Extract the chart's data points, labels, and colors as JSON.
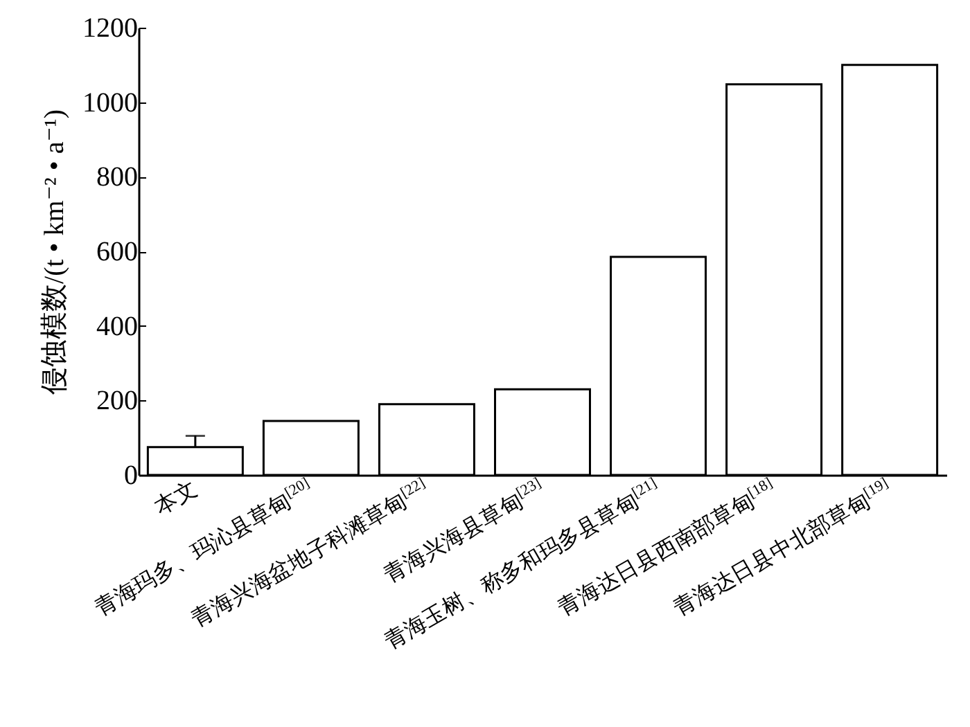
{
  "chart_data": {
    "type": "bar",
    "ylabel": "侵蚀模数/(t • km⁻² • a⁻¹)",
    "categories": [
      "本文",
      "青海玛多、玛沁县草甸$^{[20]}$",
      "青海兴海盆地子科滩草甸$^{[22]}$",
      "青海兴海县草甸$^{[23]}$",
      "青海玉树、称多和玛多县草甸$^{[21]}$",
      "青海达日县西南部草甸$^{[18]}$",
      "青海达日县中北部草甸$^{[19]}$"
    ],
    "values": [
      75,
      145,
      190,
      230,
      585,
      1048,
      1100
    ],
    "errors": [
      [
        75,
        105
      ],
      null,
      null,
      null,
      null,
      null,
      null
    ],
    "color": "#ffffff",
    "ylim": [
      0,
      1200
    ],
    "yticks": [
      0,
      200,
      400,
      600,
      800,
      1000,
      1200
    ],
    "grid": false
  }
}
